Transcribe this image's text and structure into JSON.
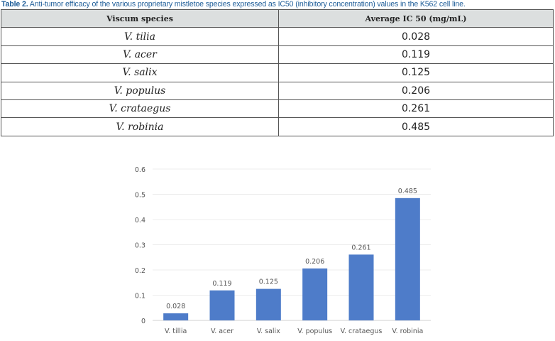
{
  "caption": {
    "label": "Table 2.",
    "text": " Anti-tumor efficacy of the various proprietary mistletoe species expressed as IC50 (inhibitory concentration) values in the K562 cell line."
  },
  "table": {
    "headers": [
      "Viscum species",
      "Average IC 50 (mg/mL)"
    ],
    "rows": [
      [
        "V. tilia",
        "0.028"
      ],
      [
        "V. acer",
        "0.119"
      ],
      [
        "V. salix",
        "0.125"
      ],
      [
        "V. populus",
        "0.206"
      ],
      [
        "V. crataegus",
        "0.261"
      ],
      [
        "V. robinia",
        "0.485"
      ]
    ]
  },
  "chart_data": {
    "type": "bar",
    "categories": [
      "V. tillia",
      "V. acer",
      "V. salix",
      "V. populus",
      "V. crataegus",
      "V. robinia"
    ],
    "values": [
      0.028,
      0.119,
      0.125,
      0.206,
      0.261,
      0.485
    ],
    "data_labels": [
      "0.028",
      "0.119",
      "0.125",
      "0.206",
      "0.261",
      "0.485"
    ],
    "yticks": [
      "0",
      "0.1",
      "0.2",
      "0.3",
      "0.4",
      "0.5",
      "0.6"
    ],
    "ylim": [
      0,
      0.6
    ],
    "grid": true,
    "title": "",
    "xlabel": "",
    "ylabel": "",
    "bar_color": "#4e7cc9"
  }
}
